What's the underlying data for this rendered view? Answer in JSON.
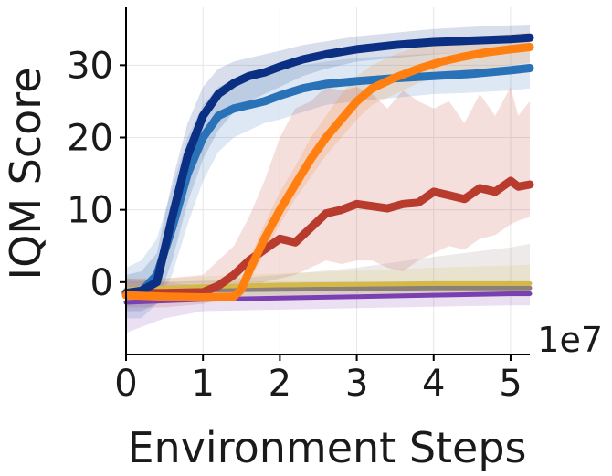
{
  "chart_data": {
    "type": "line",
    "xlabel": "Environment Steps",
    "ylabel": "IQM Score",
    "x_offset_label": "1e7",
    "xlim": [
      0,
      5.25
    ],
    "ylim": [
      -10,
      38
    ],
    "xticks": [
      0,
      1,
      2,
      3,
      4,
      5
    ],
    "yticks": [
      0,
      10,
      20,
      30
    ],
    "grid": true,
    "legend": "none",
    "series": [
      {
        "color": "#0b2f82",
        "x": [
          0,
          0.2,
          0.4,
          0.6,
          0.8,
          1.0,
          1.2,
          1.4,
          1.6,
          1.8,
          2.0,
          2.3,
          2.6,
          3.0,
          3.5,
          4.0,
          4.5,
          5.0,
          5.25
        ],
        "values": [
          -1.5,
          -1.2,
          0,
          9,
          17.5,
          23,
          26,
          27.5,
          28.5,
          29,
          29.8,
          30.8,
          31.5,
          32.2,
          32.8,
          33.2,
          33.4,
          33.6,
          33.8
        ],
        "lower": [
          -4,
          -4,
          -3,
          3,
          11,
          17,
          21,
          23.5,
          25,
          26,
          27,
          28.5,
          29.5,
          30.5,
          31,
          31.5,
          31.8,
          32,
          32.2
        ],
        "upper": [
          1,
          1.5,
          4,
          14,
          22,
          27,
          29.5,
          30.5,
          31,
          31.5,
          32,
          32.8,
          33.3,
          34,
          34.5,
          35,
          35.3,
          35.5,
          35.6
        ]
      },
      {
        "color": "#2a72b8",
        "x": [
          0,
          0.2,
          0.4,
          0.6,
          0.8,
          1.0,
          1.2,
          1.4,
          1.6,
          1.8,
          2.0,
          2.3,
          2.6,
          3.0,
          3.5,
          4.0,
          4.5,
          5.0,
          5.25
        ],
        "values": [
          -1.5,
          -1.3,
          1,
          7.5,
          15,
          20,
          23,
          24,
          24.5,
          25,
          25.8,
          26.8,
          27.4,
          27.8,
          28.2,
          28.5,
          28.8,
          29.3,
          29.6
        ],
        "lower": [
          -5,
          -5,
          -3,
          1,
          8,
          14,
          18,
          20,
          21,
          22,
          22.5,
          23.5,
          24.5,
          25,
          25.5,
          26,
          26.2,
          26.5,
          26.8
        ],
        "upper": [
          2,
          3,
          6,
          13,
          20,
          24.5,
          27,
          28,
          28.5,
          29,
          29.5,
          30,
          30.5,
          31,
          31.3,
          31.6,
          31.8,
          32,
          32.2
        ]
      },
      {
        "color": "#ff8010",
        "x": [
          0,
          0.5,
          1.0,
          1.4,
          1.5,
          1.6,
          1.8,
          2.0,
          2.2,
          2.4,
          2.6,
          2.8,
          3.0,
          3.2,
          3.5,
          3.8,
          4.1,
          4.4,
          4.7,
          5.0,
          5.25
        ],
        "values": [
          -1.8,
          -2,
          -2.1,
          -2,
          -1,
          1.5,
          6,
          10,
          13.5,
          17,
          20,
          22.5,
          25,
          26.8,
          28.3,
          29.5,
          30.5,
          31.2,
          31.8,
          32.2,
          32.5
        ],
        "lower": [
          -2.2,
          -2.4,
          -2.5,
          -2.5,
          -2,
          0,
          4,
          8,
          11.5,
          14.5,
          17.5,
          20,
          22.5,
          24.5,
          26,
          27.5,
          28.5,
          29,
          29.5,
          30,
          30.3
        ],
        "upper": [
          -1.4,
          -1.6,
          -1.7,
          -1.5,
          0,
          3,
          8,
          12.5,
          16,
          20,
          23,
          26,
          28.5,
          30,
          31.5,
          32.5,
          33.3,
          33.8,
          34,
          34.3,
          34.5
        ]
      },
      {
        "color": "#b83b2e",
        "x": [
          0,
          0.5,
          1.0,
          1.2,
          1.4,
          1.6,
          1.8,
          2.0,
          2.2,
          2.4,
          2.6,
          2.8,
          3.0,
          3.2,
          3.4,
          3.6,
          3.8,
          4.0,
          4.2,
          4.4,
          4.6,
          4.8,
          5.0,
          5.1,
          5.25
        ],
        "values": [
          -1.5,
          -1.5,
          -1.4,
          -0.5,
          1,
          3,
          4.5,
          6,
          5.5,
          7.5,
          9.5,
          10,
          10.8,
          10.5,
          10.2,
          10.8,
          11,
          12.5,
          12,
          11.5,
          13,
          12.5,
          14,
          13.2,
          13.5
        ],
        "lower": [
          -3.5,
          -3.5,
          -3,
          -2.5,
          -2,
          -1,
          0,
          0.5,
          1,
          2,
          3,
          2.5,
          3,
          3,
          2,
          1.5,
          3,
          4,
          5,
          4.5,
          6,
          6.5,
          8,
          8.5,
          9
        ],
        "upper": [
          0.5,
          0.5,
          1,
          3,
          5,
          9,
          14,
          20,
          24,
          25,
          27,
          26.5,
          27,
          26,
          24,
          26.5,
          25,
          24,
          25,
          22,
          26,
          23,
          27,
          23,
          25
        ]
      },
      {
        "color": "#7a3fb0",
        "x": [
          0,
          0.5,
          1,
          2,
          3,
          4,
          5,
          5.25
        ],
        "values": [
          -2.8,
          -2.6,
          -2.4,
          -2.2,
          -2.0,
          -1.8,
          -1.6,
          -1.6
        ],
        "lower": [
          -7,
          -5,
          -4,
          -3.8,
          -3.6,
          -3.4,
          -3.2,
          -3.2
        ],
        "upper": [
          0.5,
          0,
          -0.5,
          -0.8,
          -0.8,
          -0.6,
          -0.5,
          -0.5
        ]
      },
      {
        "color": "#8c7f76",
        "x": [
          0,
          0.5,
          1,
          2,
          3,
          4,
          5,
          5.25
        ],
        "values": [
          -1.3,
          -1.2,
          -1.1,
          -1.0,
          -0.9,
          -0.8,
          -0.8,
          -0.8
        ],
        "lower": [
          -3,
          -2.8,
          -2.6,
          -2.4,
          -2.2,
          -2.1,
          -2.0,
          -2.0
        ],
        "upper": [
          0,
          0,
          0.2,
          1,
          2,
          3.5,
          4.8,
          5.3
        ]
      },
      {
        "color": "#d4b84a",
        "x": [
          0,
          0.5,
          1,
          2,
          3,
          4,
          5,
          5.25
        ],
        "values": [
          -1.0,
          -0.8,
          -0.6,
          -0.4,
          -0.3,
          -0.2,
          -0.2,
          -0.2
        ],
        "lower": [
          -2.5,
          -2.2,
          -2.0,
          -1.8,
          -1.6,
          -1.5,
          -1.4,
          -1.4
        ],
        "upper": [
          0.5,
          0.5,
          0.8,
          1.2,
          1.6,
          2.0,
          2.3,
          2.4
        ]
      }
    ]
  }
}
